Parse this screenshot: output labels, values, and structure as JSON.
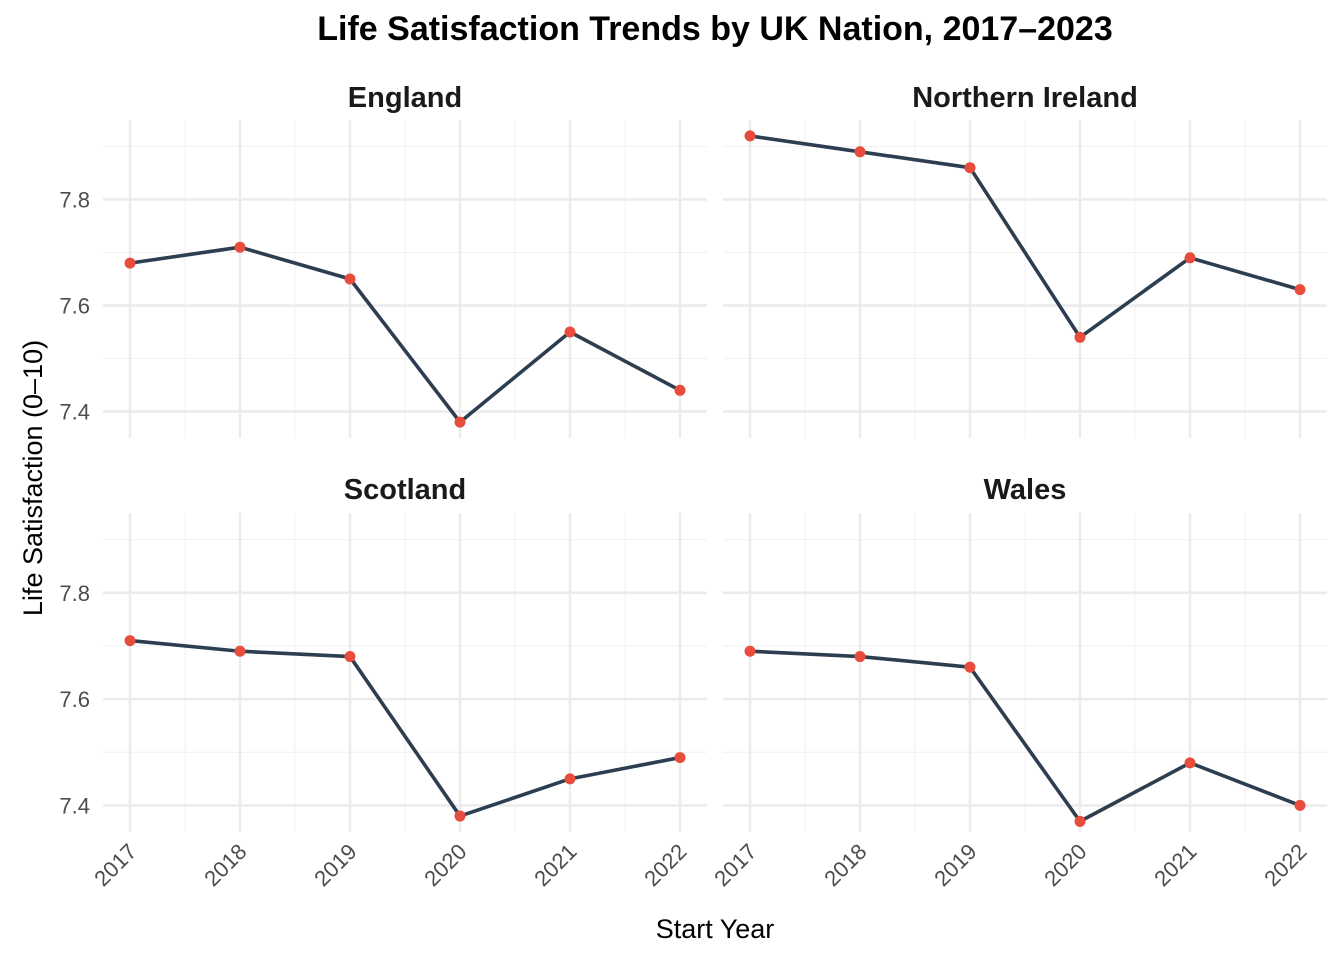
{
  "chart_data": {
    "type": "line",
    "title": "Life Satisfaction Trends by UK Nation, 2017–2023",
    "xlabel": "Start Year",
    "ylabel": "Life Satisfaction (0–10)",
    "x": [
      2017,
      2018,
      2019,
      2020,
      2021,
      2022
    ],
    "x_tick_labels": [
      "2017",
      "2018",
      "2019",
      "2020",
      "2021",
      "2022"
    ],
    "y_ticks": [
      7.4,
      7.6,
      7.8
    ],
    "y_tick_labels": [
      "7.4",
      "7.6",
      "7.8"
    ],
    "ylim": [
      7.35,
      7.95
    ],
    "grid": true,
    "line_color": "#2c3e50",
    "point_color": "#e74c3c",
    "panels": [
      {
        "name": "England",
        "values": [
          7.68,
          7.71,
          7.65,
          7.38,
          7.55,
          7.44
        ]
      },
      {
        "name": "Northern Ireland",
        "values": [
          7.92,
          7.89,
          7.86,
          7.54,
          7.69,
          7.63
        ]
      },
      {
        "name": "Scotland",
        "values": [
          7.71,
          7.69,
          7.68,
          7.38,
          7.45,
          7.49
        ]
      },
      {
        "name": "Wales",
        "values": [
          7.69,
          7.68,
          7.66,
          7.37,
          7.48,
          7.4
        ]
      }
    ]
  }
}
